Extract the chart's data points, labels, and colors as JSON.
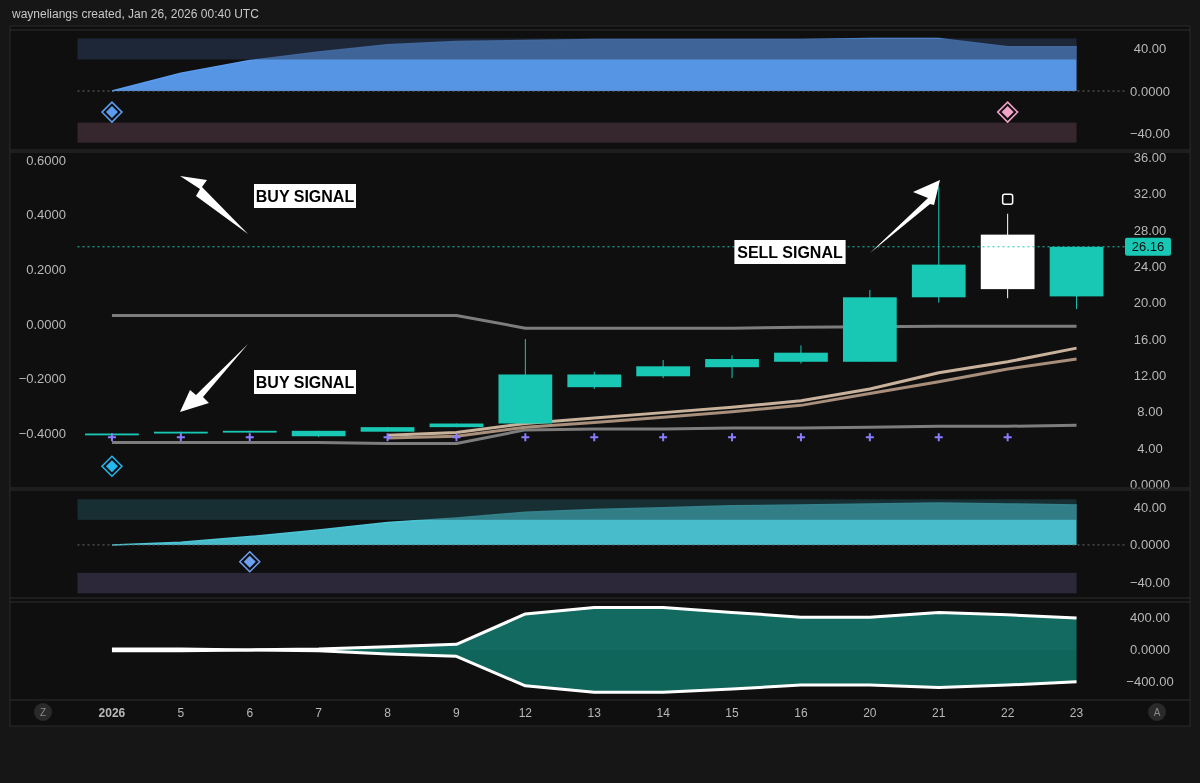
{
  "chart_data": [
    {
      "type": "area",
      "title": "wayneliangs created, Jan 26, 2026 00:40 UTC",
      "categories": [
        "2026",
        "5",
        "6",
        "7",
        "8",
        "9",
        "12",
        "13",
        "14",
        "15",
        "16",
        "20",
        "21",
        "22",
        "23"
      ],
      "series": [
        {
          "type": "area",
          "color": "#5b9cf0",
          "values": [
            0,
            17,
            29,
            37,
            44,
            47,
            48,
            49,
            49,
            49,
            49,
            50,
            50,
            42,
            42
          ]
        },
        {
          "type": "scatter",
          "marker": "diamond",
          "color": "#5b9cf0",
          "values": [
            -20,
            null,
            null,
            null,
            null,
            null,
            null,
            null,
            null,
            null,
            null,
            null,
            null,
            null,
            null
          ]
        },
        {
          "type": "scatter",
          "marker": "diamond",
          "color": "#f4a3c8",
          "values": [
            null,
            null,
            null,
            null,
            null,
            null,
            null,
            null,
            null,
            null,
            null,
            null,
            null,
            -20,
            null
          ]
        }
      ],
      "bands": [
        {
          "axis": "y",
          "from": 30,
          "to": 50,
          "color": "#2b3d5a"
        },
        {
          "axis": "y",
          "from": -30,
          "to": -49,
          "color": "#573a47"
        }
      ],
      "ref_lines": [
        {
          "axis": "y",
          "value": 0,
          "color": "#6b6b6b",
          "line_style": "dotted"
        }
      ],
      "ylim": [
        -56,
        58
      ],
      "yticks": [
        {
          "value": 40,
          "label": "40.00"
        },
        {
          "value": 0,
          "label": "0.0000"
        },
        {
          "value": -40,
          "label": "−40.00"
        }
      ],
      "tick_labels": "y"
    },
    {
      "type": "candlestick",
      "categories": [
        "2026",
        "5",
        "6",
        "7",
        "8",
        "9",
        "12",
        "13",
        "14",
        "15",
        "16",
        "20",
        "21",
        "22",
        "23"
      ],
      "ohlc": [
        [
          5.4,
          5.6,
          5.4,
          5.6
        ],
        [
          5.6,
          5.8,
          5.6,
          5.8
        ],
        [
          5.7,
          5.9,
          5.7,
          5.9
        ],
        [
          5.3,
          5.9,
          5.2,
          5.9
        ],
        [
          5.8,
          6.3,
          5.8,
          6.3
        ],
        [
          6.3,
          6.7,
          6.3,
          6.7
        ],
        [
          6.7,
          16,
          6.7,
          12.1
        ],
        [
          10.7,
          12.4,
          10.5,
          12.1
        ],
        [
          11.9,
          13.7,
          11.7,
          13
        ],
        [
          12.9,
          14.2,
          11.7,
          13.8
        ],
        [
          13.5,
          15.3,
          13.3,
          14.5
        ],
        [
          13.5,
          21.4,
          13.5,
          20.6
        ],
        [
          20.6,
          32.8,
          20,
          24.2
        ],
        [
          27.5,
          29.8,
          20.5,
          21.5
        ],
        [
          20.7,
          26.16,
          19.3,
          26.16
        ]
      ],
      "colors": [
        "#19c8b4",
        "#19c8b4",
        "#19c8b4",
        "#19c8b4",
        "#19c8b4",
        "#19c8b4",
        "#19c8b4",
        "#19c8b4",
        "#19c8b4",
        "#19c8b4",
        "#19c8b4",
        "#19c8b4",
        "#19c8b4",
        "#ffffff",
        "#19c8b4"
      ],
      "series": [
        {
          "type": "line",
          "color": "#7d7d7d",
          "values": [
            18.6,
            18.6,
            18.6,
            18.6,
            18.6,
            18.6,
            17.2,
            17.2,
            17.2,
            17.2,
            17.3,
            null,
            17.4,
            17.4,
            17.4
          ]
        },
        {
          "type": "line",
          "color": "#7d7d7d",
          "values": [
            4.6,
            4.6,
            4.6,
            4.6,
            4.5,
            4.5,
            6,
            6.1,
            6.1,
            6.2,
            6.2,
            6.3,
            6.4,
            6.4,
            6.5
          ]
        },
        {
          "type": "line",
          "color": "#c9b29c",
          "values": [
            null,
            null,
            null,
            null,
            5.4,
            5.7,
            6.7,
            7.3,
            7.9,
            8.5,
            9.2,
            10.5,
            12.3,
            13.5,
            15
          ]
        },
        {
          "type": "line",
          "color": "#a88f7c",
          "values": [
            null,
            null,
            null,
            null,
            5.1,
            5.3,
            6.3,
            6.8,
            7.4,
            8,
            8.7,
            10,
            11.3,
            12.7,
            13.8
          ]
        },
        {
          "type": "scatter",
          "marker": "cross",
          "color": "#8a7dff",
          "values": [
            5.2,
            5.2,
            5.2,
            null,
            5.2,
            5.2,
            5.2,
            5.2,
            5.2,
            5.2,
            5.2,
            5.2,
            5.2,
            5.2,
            null
          ]
        },
        {
          "type": "scatter",
          "marker": "diamond",
          "color": "#22b8f0",
          "values": [
            2,
            null,
            null,
            null,
            null,
            null,
            null,
            null,
            null,
            null,
            null,
            null,
            null,
            null,
            null
          ]
        },
        {
          "type": "scatter",
          "marker": "square",
          "color": "#ffffff",
          "values": [
            null,
            null,
            null,
            null,
            null,
            null,
            null,
            null,
            null,
            null,
            null,
            null,
            null,
            31.4,
            null
          ]
        }
      ],
      "annotations": [
        "BUY SIGNAL",
        "BUY SIGNAL",
        "SELL SIGNAL"
      ],
      "ref_lines": [
        {
          "axis": "y",
          "value": 26.16,
          "label": "26.16",
          "color": "#19c8b4",
          "line_style": "dotted"
        }
      ],
      "ylim": [
        -0.4,
        36.6
      ],
      "yticks": [
        {
          "value": 0,
          "label": "0.0000"
        },
        {
          "value": 4,
          "label": "4.00"
        },
        {
          "value": 8,
          "label": "8.00"
        },
        {
          "value": 12,
          "label": "12.00"
        },
        {
          "value": 16,
          "label": "16.00"
        },
        {
          "value": 20,
          "label": "20.00"
        },
        {
          "value": 24,
          "label": "24.00"
        },
        {
          "value": 28,
          "label": "28.00"
        },
        {
          "value": 32,
          "label": "32.00"
        },
        {
          "value": 36,
          "label": "36.00"
        }
      ],
      "y2lim": [
        -0.6,
        0.63
      ],
      "y2ticks": [
        {
          "value": 0.6,
          "label": "0.6000"
        },
        {
          "value": 0.4,
          "label": "0.4000"
        },
        {
          "value": 0.2,
          "label": "0.2000"
        },
        {
          "value": 0,
          "label": "0.0000"
        },
        {
          "value": -0.2,
          "label": "−0.2000"
        },
        {
          "value": -0.4,
          "label": "−0.4000"
        }
      ],
      "tick_labels": "y"
    },
    {
      "type": "area",
      "categories": [
        "2026",
        "5",
        "6",
        "7",
        "8",
        "9",
        "12",
        "13",
        "14",
        "15",
        "16",
        "20",
        "21",
        "22",
        "23"
      ],
      "series": [
        {
          "type": "area",
          "color": "#4cc6d6",
          "values": [
            0,
            3,
            9,
            16,
            24,
            29,
            35,
            38,
            40,
            42,
            43,
            44,
            45,
            44,
            43
          ]
        },
        {
          "type": "scatter",
          "marker": "diamond",
          "color": "#6f9ff0",
          "values": [
            null,
            null,
            -18,
            null,
            null,
            null,
            null,
            null,
            null,
            null,
            null,
            null,
            null,
            null,
            null
          ]
        }
      ],
      "bands": [
        {
          "axis": "y",
          "from": 27,
          "to": 49,
          "color": "#1f4a50"
        },
        {
          "axis": "y",
          "from": -30,
          "to": -52,
          "color": "#463c5c"
        }
      ],
      "ref_lines": [
        {
          "axis": "y",
          "value": 0,
          "color": "#6b6b6b",
          "line_style": "dotted"
        }
      ],
      "ylim": [
        -57,
        59
      ],
      "yticks": [
        {
          "value": 40,
          "label": "40.00"
        },
        {
          "value": 0,
          "label": "0.0000"
        },
        {
          "value": -40,
          "label": "−40.00"
        }
      ],
      "tick_labels": "y"
    },
    {
      "type": "area",
      "categories": [
        "2026",
        "5",
        "6",
        "7",
        "8",
        "9",
        "12",
        "13",
        "14",
        "15",
        "16",
        "20",
        "21",
        "22",
        "23"
      ],
      "series": [
        {
          "type": "area",
          "color": "#137066",
          "values": [
            10,
            10,
            0,
            10,
            40,
            70,
            450,
            530,
            530,
            470,
            410,
            410,
            470,
            440,
            400
          ]
        },
        {
          "type": "area",
          "color": "#116a60",
          "values": [
            -10,
            -10,
            0,
            -10,
            -50,
            -80,
            -450,
            -530,
            -530,
            -490,
            -440,
            -440,
            -470,
            -440,
            -400
          ]
        }
      ],
      "annotations": [
        "Z",
        "A"
      ],
      "ylim": [
        -627,
        600
      ],
      "yticks": [
        {
          "value": 400,
          "label": "400.00"
        },
        {
          "value": 0,
          "label": "0.0000"
        },
        {
          "value": -400,
          "label": "−400.00"
        }
      ]
    }
  ]
}
